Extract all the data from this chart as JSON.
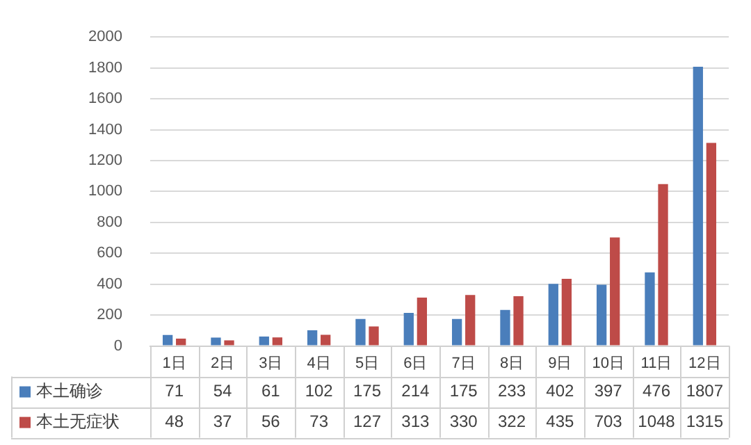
{
  "chart_data": {
    "type": "bar",
    "categories": [
      "1日",
      "2日",
      "3日",
      "4日",
      "5日",
      "6日",
      "7日",
      "8日",
      "9日",
      "10日",
      "11日",
      "12日"
    ],
    "series": [
      {
        "name": "本土确诊",
        "color": "#4a7ebb",
        "values": [
          71,
          54,
          61,
          102,
          175,
          214,
          175,
          233,
          402,
          397,
          476,
          1807
        ]
      },
      {
        "name": "本土无症状",
        "color": "#be4b48",
        "values": [
          48,
          37,
          56,
          73,
          127,
          313,
          330,
          322,
          435,
          703,
          1048,
          1315
        ]
      }
    ],
    "ylim": [
      0,
      2000
    ],
    "yticks": [
      0,
      200,
      400,
      600,
      800,
      1000,
      1200,
      1400,
      1600,
      1800,
      2000
    ],
    "grid": "y",
    "legend": "bottom",
    "data_labels": true
  }
}
